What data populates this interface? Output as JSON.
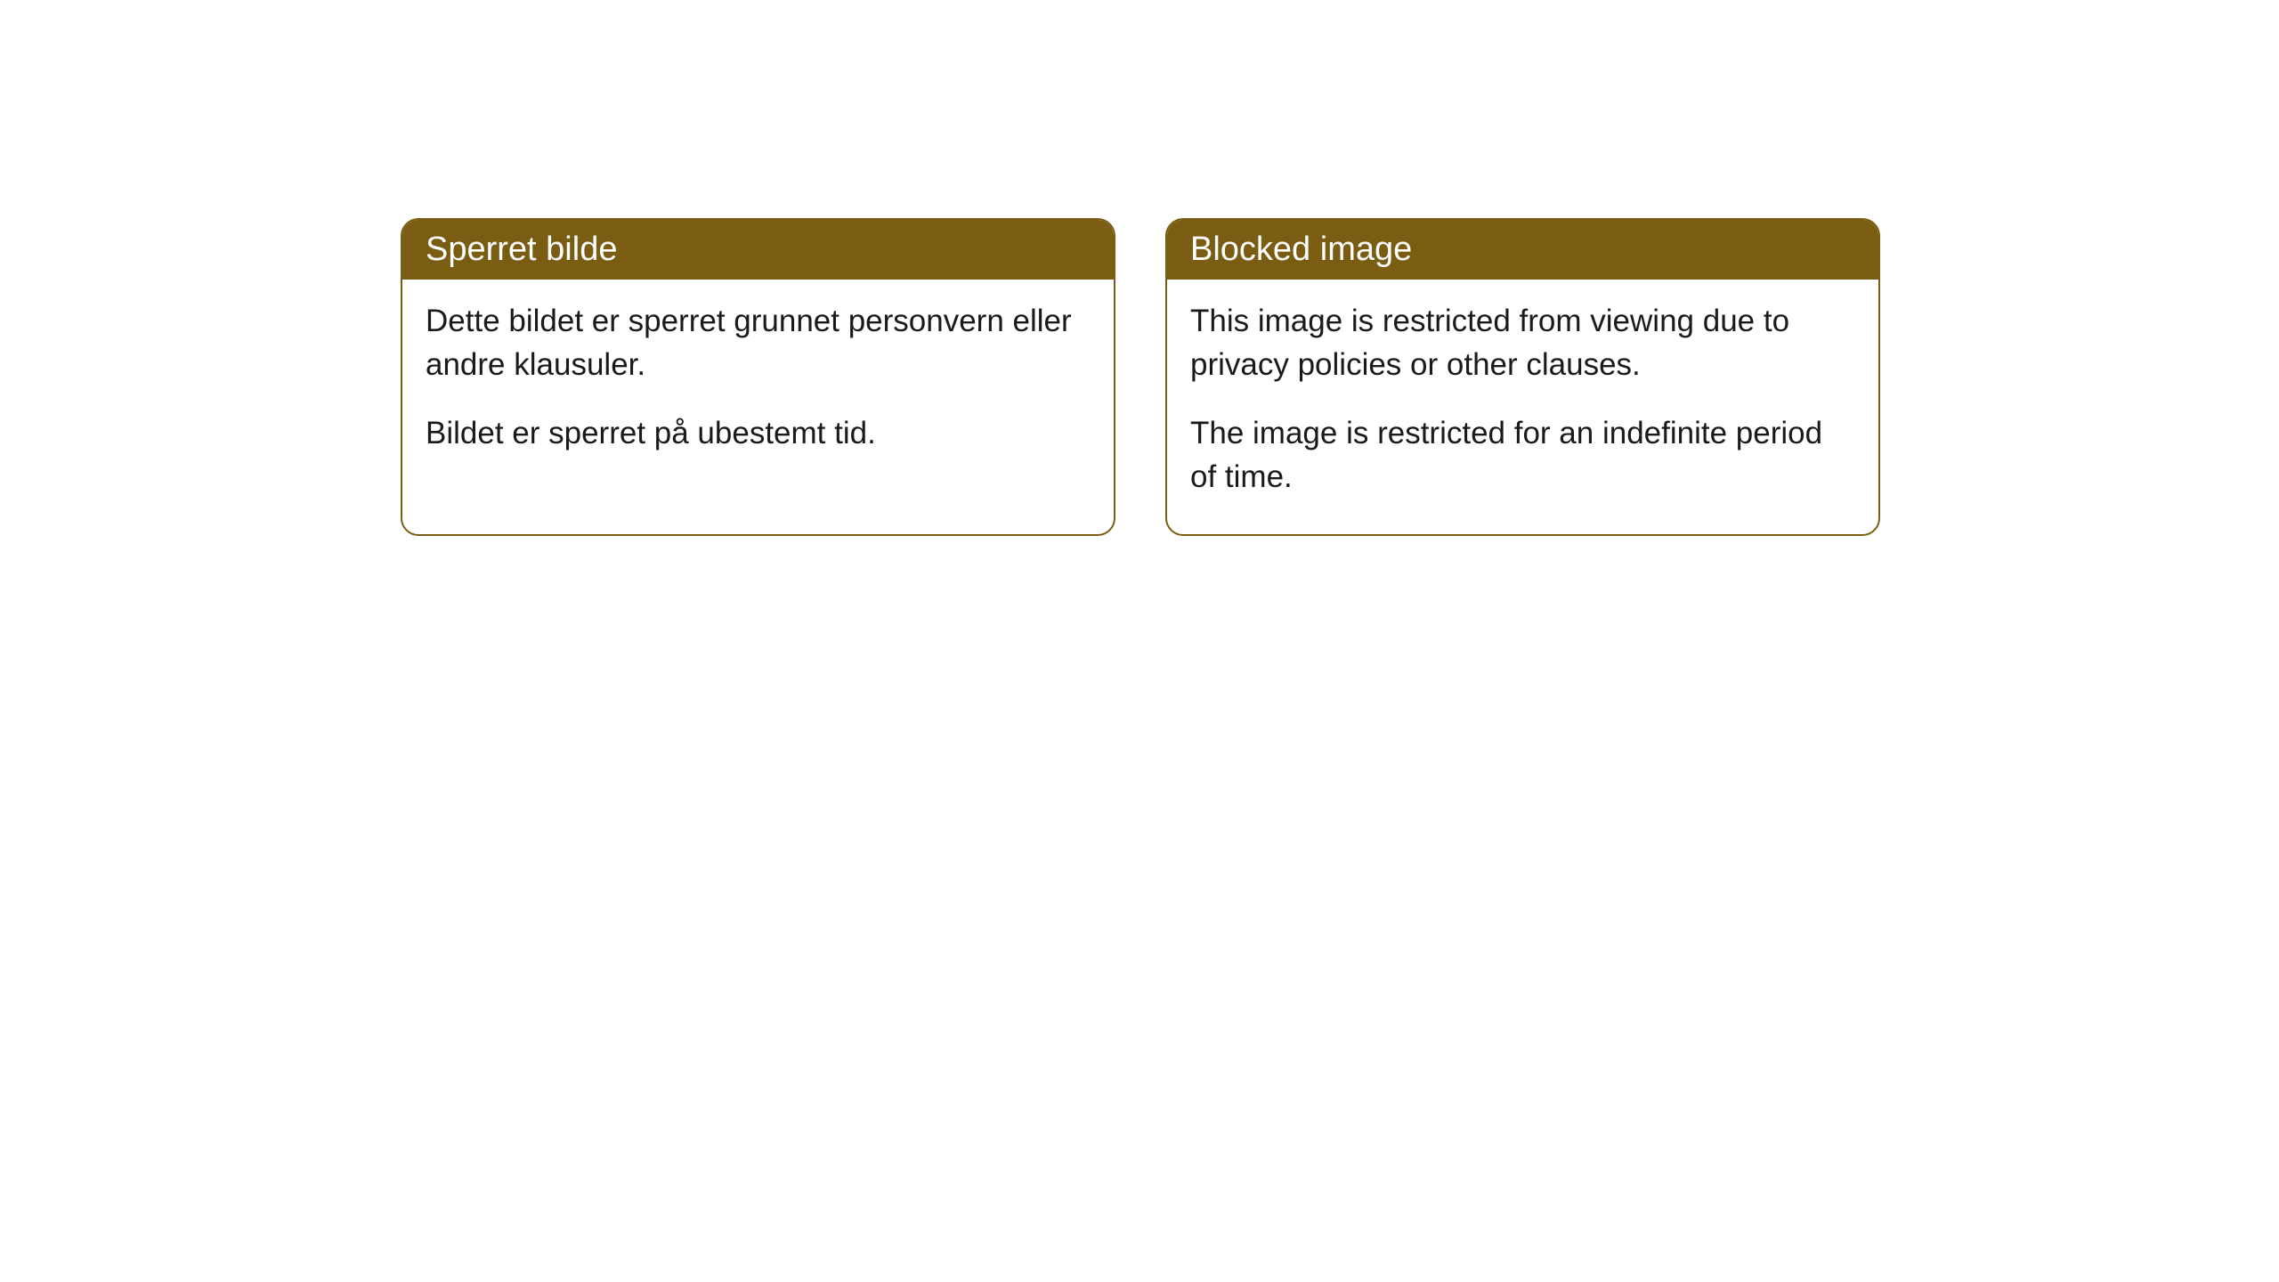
{
  "cards": [
    {
      "title": "Sperret bilde",
      "paragraph1": "Dette bildet er sperret grunnet personvern eller andre klausuler.",
      "paragraph2": "Bildet er sperret på ubestemt tid."
    },
    {
      "title": "Blocked image",
      "paragraph1": "This image is restricted from viewing due to privacy policies or other clauses.",
      "paragraph2": "The image is restricted for an indefinite period of time."
    }
  ],
  "style": {
    "header_bg_color": "#7a5c12",
    "header_text_color": "#ffffff",
    "border_color": "#7a5c12",
    "body_text_color": "#1a1a1a",
    "card_bg_color": "#ffffff",
    "page_bg_color": "#ffffff",
    "border_radius": 20,
    "header_fontsize": 38,
    "body_fontsize": 35
  }
}
